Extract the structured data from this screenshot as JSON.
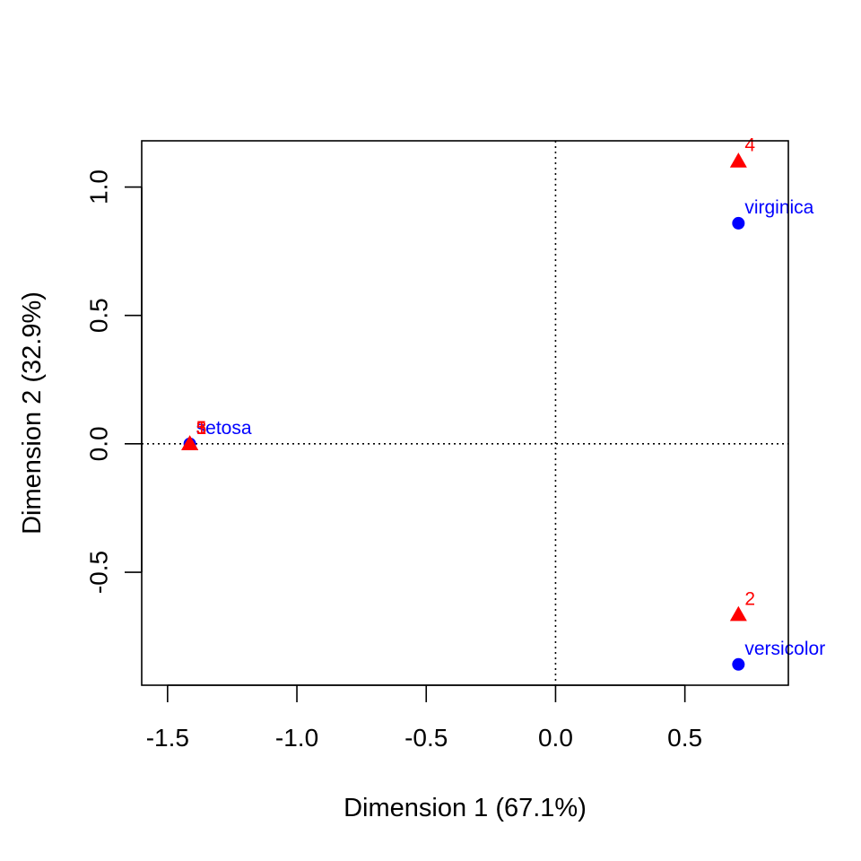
{
  "chart_data": {
    "type": "scatter",
    "xlabel": "Dimension 1 (67.1%)",
    "ylabel": "Dimension 2 (32.9%)",
    "xlim": [
      -1.6,
      0.9
    ],
    "ylim": [
      -0.94,
      1.18
    ],
    "x_ticks": [
      -1.5,
      -1.0,
      -0.5,
      0.0,
      0.5
    ],
    "x_tick_labels": [
      "-1.5",
      "-1.0",
      "-0.5",
      "0.0",
      "0.5"
    ],
    "y_ticks": [
      -0.5,
      0.0,
      0.5,
      1.0
    ],
    "y_tick_labels": [
      "-0.5",
      "0.0",
      "0.5",
      "1.0"
    ],
    "reference_lines": {
      "x": 0,
      "y": 0,
      "style": "dotted"
    },
    "grid": false,
    "legend": "none",
    "series": [
      {
        "marker": "circle",
        "color": "#0000ff",
        "points": [
          {
            "label": "setosa",
            "x": -1.414,
            "y": 0.0
          },
          {
            "label": "versicolor",
            "x": 0.707,
            "y": -0.859
          },
          {
            "label": "virginica",
            "x": 0.707,
            "y": 0.859
          }
        ]
      },
      {
        "marker": "triangle",
        "color": "#ff0000",
        "points": [
          {
            "label": "1",
            "x": -1.414,
            "y": 0.0
          },
          {
            "label": "3",
            "x": -1.414,
            "y": 0.0
          },
          {
            "label": "5",
            "x": -1.414,
            "y": 0.0
          },
          {
            "label": "2",
            "x": 0.707,
            "y": -0.665
          },
          {
            "label": "4",
            "x": 0.707,
            "y": 1.101
          }
        ]
      }
    ]
  }
}
